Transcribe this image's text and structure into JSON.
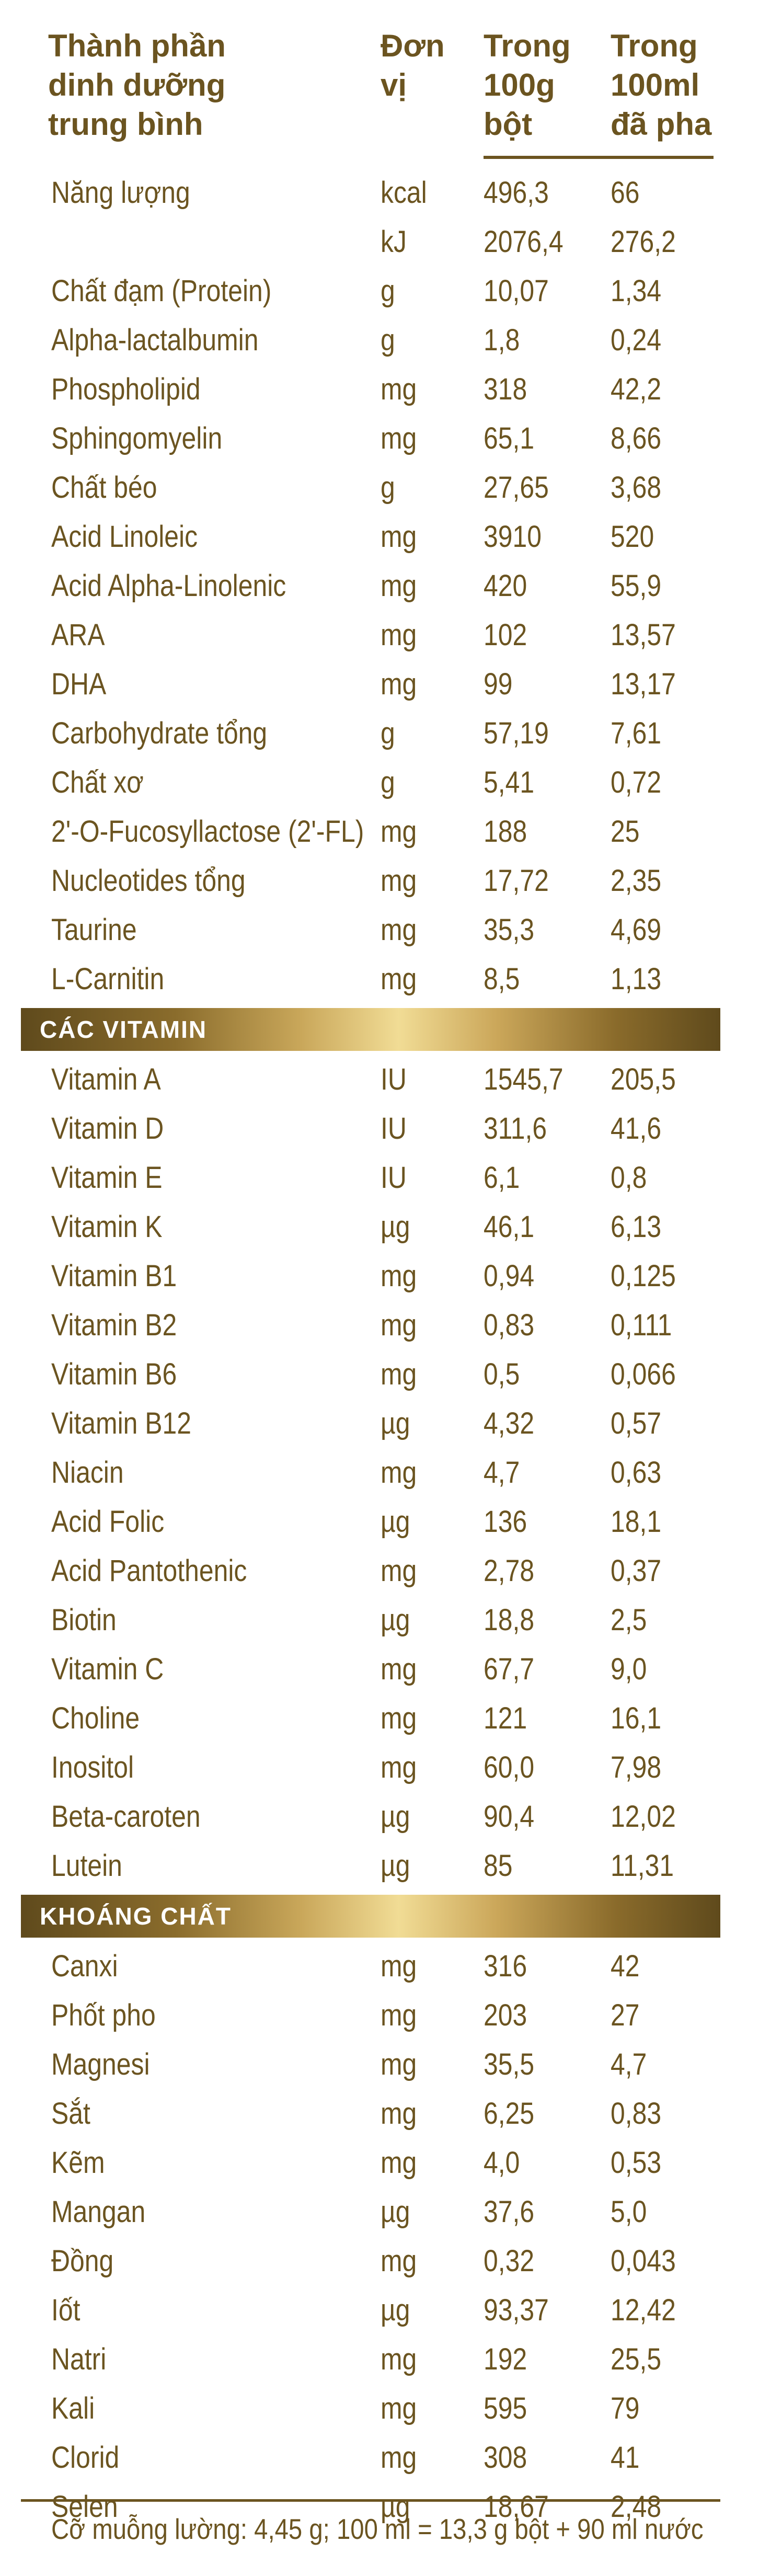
{
  "header": {
    "col1": [
      "Thành phần",
      "dinh dưỡng",
      "trung bình"
    ],
    "col2": [
      "Đơn",
      "vị"
    ],
    "col3": [
      "Trong",
      "100g",
      "bột"
    ],
    "col4": [
      "Trong",
      "100ml",
      "đã pha"
    ]
  },
  "sections": [
    {
      "title": "",
      "rows": [
        {
          "name": "Năng lượng",
          "unit": "kcal",
          "per100g": "496,3",
          "per100ml": "66"
        },
        {
          "name": "",
          "unit": "kJ",
          "per100g": "2076,4",
          "per100ml": "276,2"
        },
        {
          "name": "Chất đạm (Protein)",
          "unit": "g",
          "per100g": "10,07",
          "per100ml": "1,34"
        },
        {
          "name": "Alpha-lactalbumin",
          "unit": "g",
          "per100g": "1,8",
          "per100ml": "0,24"
        },
        {
          "name": "Phospholipid",
          "unit": "mg",
          "per100g": "318",
          "per100ml": "42,2"
        },
        {
          "name": "Sphingomyelin",
          "unit": "mg",
          "per100g": "65,1",
          "per100ml": "8,66"
        },
        {
          "name": "Chất béo",
          "unit": "g",
          "per100g": "27,65",
          "per100ml": "3,68"
        },
        {
          "name": "Acid Linoleic",
          "unit": "mg",
          "per100g": "3910",
          "per100ml": "520"
        },
        {
          "name": "Acid Alpha-Linolenic",
          "unit": "mg",
          "per100g": "420",
          "per100ml": "55,9"
        },
        {
          "name": "ARA",
          "unit": "mg",
          "per100g": "102",
          "per100ml": "13,57"
        },
        {
          "name": "DHA",
          "unit": "mg",
          "per100g": "99",
          "per100ml": "13,17"
        },
        {
          "name": "Carbohydrate tổng",
          "unit": "g",
          "per100g": "57,19",
          "per100ml": "7,61"
        },
        {
          "name": "Chất xơ",
          "unit": "g",
          "per100g": "5,41",
          "per100ml": "0,72"
        },
        {
          "name": "2'-O-Fucosyllactose (2'-FL)",
          "unit": "mg",
          "per100g": "188",
          "per100ml": "25"
        },
        {
          "name": "Nucleotides tổng",
          "unit": "mg",
          "per100g": "17,72",
          "per100ml": "2,35"
        },
        {
          "name": "Taurine",
          "unit": "mg",
          "per100g": "35,3",
          "per100ml": "4,69"
        },
        {
          "name": "L-Carnitin",
          "unit": "mg",
          "per100g": "8,5",
          "per100ml": "1,13"
        }
      ]
    },
    {
      "title": "CÁC VITAMIN",
      "rows": [
        {
          "name": "Vitamin A",
          "unit": "IU",
          "per100g": "1545,7",
          "per100ml": "205,5"
        },
        {
          "name": "Vitamin D",
          "unit": "IU",
          "per100g": "311,6",
          "per100ml": "41,6"
        },
        {
          "name": "Vitamin E",
          "unit": "IU",
          "per100g": "6,1",
          "per100ml": "0,8"
        },
        {
          "name": "Vitamin K",
          "unit": "µg",
          "per100g": "46,1",
          "per100ml": "6,13"
        },
        {
          "name": "Vitamin B1",
          "unit": "mg",
          "per100g": "0,94",
          "per100ml": "0,125"
        },
        {
          "name": "Vitamin B2",
          "unit": "mg",
          "per100g": "0,83",
          "per100ml": "0,111"
        },
        {
          "name": "Vitamin B6",
          "unit": "mg",
          "per100g": "0,5",
          "per100ml": "0,066"
        },
        {
          "name": "Vitamin B12",
          "unit": "µg",
          "per100g": "4,32",
          "per100ml": "0,57"
        },
        {
          "name": "Niacin",
          "unit": "mg",
          "per100g": "4,7",
          "per100ml": "0,63"
        },
        {
          "name": "Acid Folic",
          "unit": "µg",
          "per100g": "136",
          "per100ml": "18,1"
        },
        {
          "name": "Acid Pantothenic",
          "unit": "mg",
          "per100g": "2,78",
          "per100ml": "0,37"
        },
        {
          "name": "Biotin",
          "unit": "µg",
          "per100g": "18,8",
          "per100ml": "2,5"
        },
        {
          "name": "Vitamin C",
          "unit": "mg",
          "per100g": "67,7",
          "per100ml": "9,0"
        },
        {
          "name": "Choline",
          "unit": "mg",
          "per100g": "121",
          "per100ml": "16,1"
        },
        {
          "name": "Inositol",
          "unit": "mg",
          "per100g": "60,0",
          "per100ml": "7,98"
        },
        {
          "name": "Beta-caroten",
          "unit": "µg",
          "per100g": "90,4",
          "per100ml": "12,02"
        },
        {
          "name": "Lutein",
          "unit": "µg",
          "per100g": "85",
          "per100ml": "11,31"
        }
      ]
    },
    {
      "title": "KHOÁNG CHẤT",
      "rows": [
        {
          "name": "Canxi",
          "unit": "mg",
          "per100g": "316",
          "per100ml": "42"
        },
        {
          "name": "Phốt pho",
          "unit": "mg",
          "per100g": "203",
          "per100ml": "27"
        },
        {
          "name": "Magnesi",
          "unit": "mg",
          "per100g": "35,5",
          "per100ml": "4,7"
        },
        {
          "name": "Sắt",
          "unit": "mg",
          "per100g": "6,25",
          "per100ml": "0,83"
        },
        {
          "name": "Kẽm",
          "unit": "mg",
          "per100g": "4,0",
          "per100ml": "0,53"
        },
        {
          "name": "Mangan",
          "unit": "µg",
          "per100g": "37,6",
          "per100ml": "5,0"
        },
        {
          "name": "Đồng",
          "unit": "mg",
          "per100g": "0,32",
          "per100ml": "0,043"
        },
        {
          "name": "Iốt",
          "unit": "µg",
          "per100g": "93,37",
          "per100ml": "12,42"
        },
        {
          "name": "Natri",
          "unit": "mg",
          "per100g": "192",
          "per100ml": "25,5"
        },
        {
          "name": "Kali",
          "unit": "mg",
          "per100g": "595",
          "per100ml": "79"
        },
        {
          "name": "Clorid",
          "unit": "mg",
          "per100g": "308",
          "per100ml": "41"
        },
        {
          "name": "Selen",
          "unit": "µg",
          "per100g": "18,67",
          "per100ml": "2,48"
        }
      ]
    }
  ],
  "footer": "Cỡ muỗng lường: 4,45 g; 100 ml = 13,3 g bột + 90 ml nước",
  "colors": {
    "text": "#6b5420",
    "band_dark": "#5f4a1c",
    "band_light": "#f1dc95"
  }
}
